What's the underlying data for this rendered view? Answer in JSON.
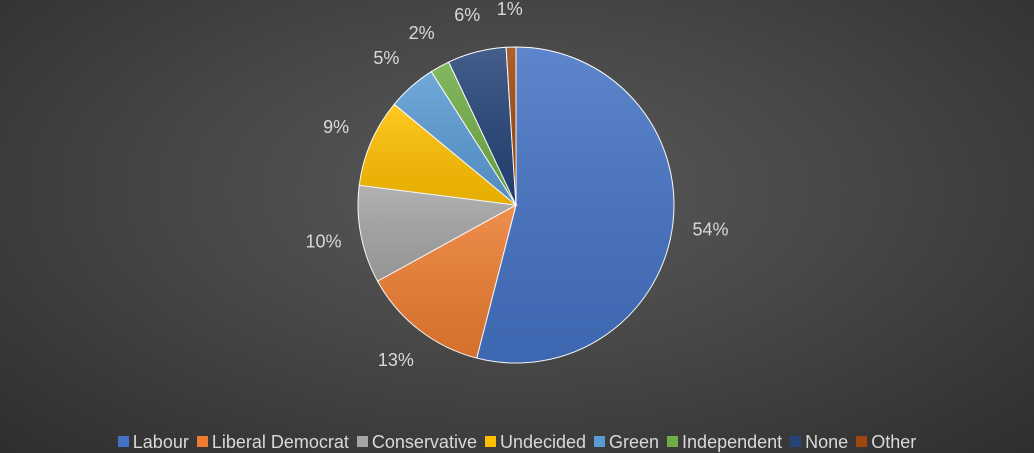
{
  "chart_data": {
    "type": "pie",
    "title": "",
    "legend_position": "bottom",
    "start_angle_deg": 0,
    "direction": "clockwise",
    "label_position": "outside",
    "slices": [
      {
        "name": "Labour",
        "value": 54,
        "label": "54%",
        "color": "#4472c4"
      },
      {
        "name": "Liberal Democrat",
        "value": 13,
        "label": "13%",
        "color": "#ed7d31"
      },
      {
        "name": "Conservative",
        "value": 10,
        "label": "10%",
        "color": "#a5a5a5"
      },
      {
        "name": "Undecided",
        "value": 9,
        "label": "9%",
        "color": "#ffc000"
      },
      {
        "name": "Green",
        "value": 5,
        "label": "5%",
        "color": "#5b9bd5"
      },
      {
        "name": "Independent",
        "value": 2,
        "label": "2%",
        "color": "#70ad47"
      },
      {
        "name": "None",
        "value": 6,
        "label": "6%",
        "color": "#264478"
      },
      {
        "name": "Other",
        "value": 1,
        "label": "1%",
        "color": "#9e480e"
      }
    ]
  }
}
